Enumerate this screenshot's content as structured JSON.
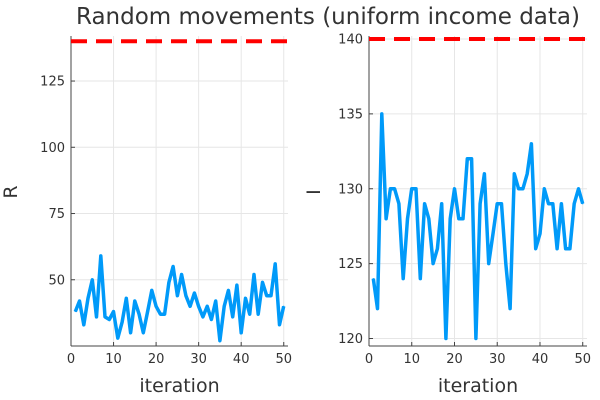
{
  "chart_data": [
    {
      "type": "line",
      "title": "Random movements (uniform income data)",
      "xlabel": "iteration",
      "ylabel": "R",
      "xlim": [
        0,
        51
      ],
      "ylim": [
        25,
        142
      ],
      "xticks": [
        0,
        10,
        20,
        30,
        40,
        50
      ],
      "yticks": [
        50,
        75,
        100,
        125
      ],
      "grid": true,
      "series": [
        {
          "color": "#009af9",
          "x": [
            1,
            2,
            3,
            4,
            5,
            6,
            7,
            8,
            9,
            10,
            11,
            12,
            13,
            14,
            15,
            16,
            17,
            18,
            19,
            20,
            21,
            22,
            23,
            24,
            25,
            26,
            27,
            28,
            29,
            30,
            31,
            32,
            33,
            34,
            35,
            36,
            37,
            38,
            39,
            40,
            41,
            42,
            43,
            44,
            45,
            46,
            47,
            48,
            49,
            50
          ],
          "y": [
            38,
            42,
            33,
            43,
            50,
            36,
            59,
            36,
            35,
            38,
            28,
            34,
            43,
            30,
            42,
            37,
            30,
            38,
            46,
            40,
            37,
            37,
            49,
            55,
            44,
            52,
            44,
            40,
            45,
            40,
            36,
            40,
            35,
            42,
            27,
            40,
            46,
            36,
            48,
            30,
            43,
            37,
            52,
            37,
            49,
            44,
            44,
            56,
            33,
            40
          ]
        },
        {
          "color": "#ff0000",
          "dashed": true,
          "x": [
            0,
            51
          ],
          "y": [
            140,
            140
          ]
        }
      ]
    },
    {
      "type": "line",
      "title": "",
      "xlabel": "iteration",
      "ylabel": "I",
      "xlim": [
        0,
        51
      ],
      "ylim": [
        119.5,
        140.2
      ],
      "xticks": [
        0,
        10,
        20,
        30,
        40,
        50
      ],
      "yticks": [
        120,
        125,
        130,
        135,
        140
      ],
      "grid": true,
      "series": [
        {
          "color": "#009af9",
          "x": [
            1,
            2,
            3,
            4,
            5,
            6,
            7,
            8,
            9,
            10,
            11,
            12,
            13,
            14,
            15,
            16,
            17,
            18,
            19,
            20,
            21,
            22,
            23,
            24,
            25,
            26,
            27,
            28,
            29,
            30,
            31,
            32,
            33,
            34,
            35,
            36,
            37,
            38,
            39,
            40,
            41,
            42,
            43,
            44,
            45,
            46,
            47,
            48,
            49,
            50
          ],
          "y": [
            124,
            122,
            135,
            128,
            130,
            130,
            129,
            124,
            128,
            130,
            130,
            124,
            129,
            128,
            125,
            126,
            129,
            120,
            128,
            130,
            128,
            128,
            132,
            132,
            120,
            129,
            131,
            125,
            127,
            129,
            129,
            125,
            122,
            131,
            130,
            130,
            131,
            133,
            126,
            127,
            130,
            129,
            129,
            126,
            129,
            126,
            126,
            129,
            130,
            129
          ]
        },
        {
          "color": "#ff0000",
          "dashed": true,
          "x": [
            0,
            51
          ],
          "y": [
            140,
            140
          ]
        }
      ]
    }
  ]
}
